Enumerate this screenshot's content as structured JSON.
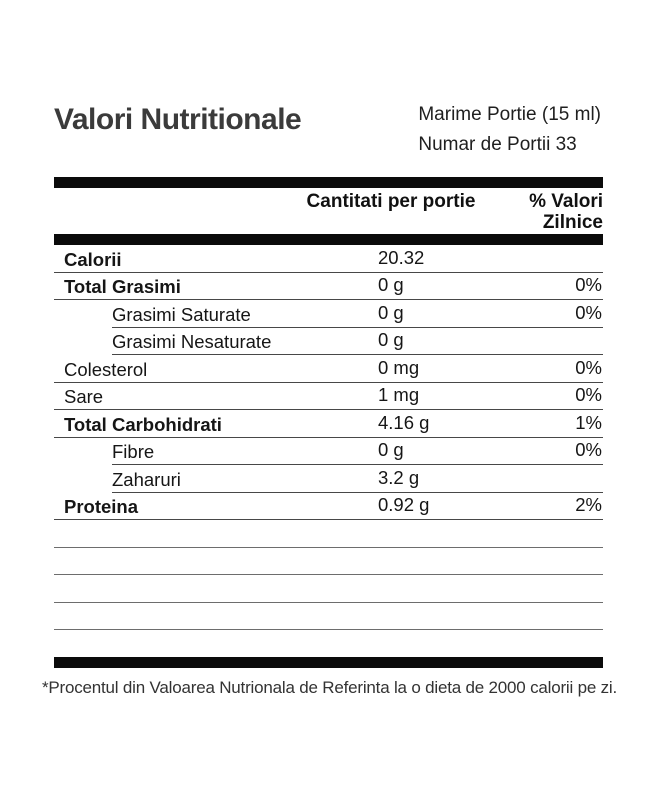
{
  "nutrition_label": {
    "title": "Valori Nutritionale",
    "serving_size": "Marime Portie (15 ml)",
    "servings_per_container": "Numar de Portii 33",
    "columns": {
      "amount": "Cantitati per portie",
      "daily_value": "% Valori Zilnice"
    },
    "rows": [
      {
        "label": "Calorii",
        "amount": "20.32",
        "daily_value": "",
        "emphasis": "bold",
        "indent": false
      },
      {
        "label": "Total Grasimi",
        "amount": "0 g",
        "daily_value": "0%",
        "emphasis": "bold",
        "indent": false
      },
      {
        "label": "Grasimi Saturate",
        "amount": "0 g",
        "daily_value": "0%",
        "emphasis": "regular",
        "indent": true
      },
      {
        "label": "Grasimi Nesaturate",
        "amount": "0 g",
        "daily_value": "",
        "emphasis": "regular",
        "indent": true
      },
      {
        "label": "Colesterol",
        "amount": "0 mg",
        "daily_value": "0%",
        "emphasis": "regular",
        "indent": false
      },
      {
        "label": "Sare",
        "amount": "1 mg",
        "daily_value": "0%",
        "emphasis": "regular",
        "indent": false
      },
      {
        "label": "Total Carbohidrati",
        "amount": "4.16 g",
        "daily_value": "1%",
        "emphasis": "bold",
        "indent": false
      },
      {
        "label": "Fibre",
        "amount": "0 g",
        "daily_value": "0%",
        "emphasis": "regular",
        "indent": true
      },
      {
        "label": "Zaharuri",
        "amount": "3.2 g",
        "daily_value": "",
        "emphasis": "regular",
        "indent": true
      },
      {
        "label": "Proteina",
        "amount": "0.92 g",
        "daily_value": "2%",
        "emphasis": "bold",
        "indent": false
      }
    ],
    "empty_row_count": 4,
    "footnote": "*Procentul din Valoarea Nutrionala de Referinta la o dieta de 2000 calorii pe zi.",
    "colors": {
      "thick_bar": "#0b0b0b",
      "row_rule": "#474747",
      "empty_row_rule": "#6d6d6d",
      "text": "#161616",
      "title": "#3b3b3b"
    }
  }
}
